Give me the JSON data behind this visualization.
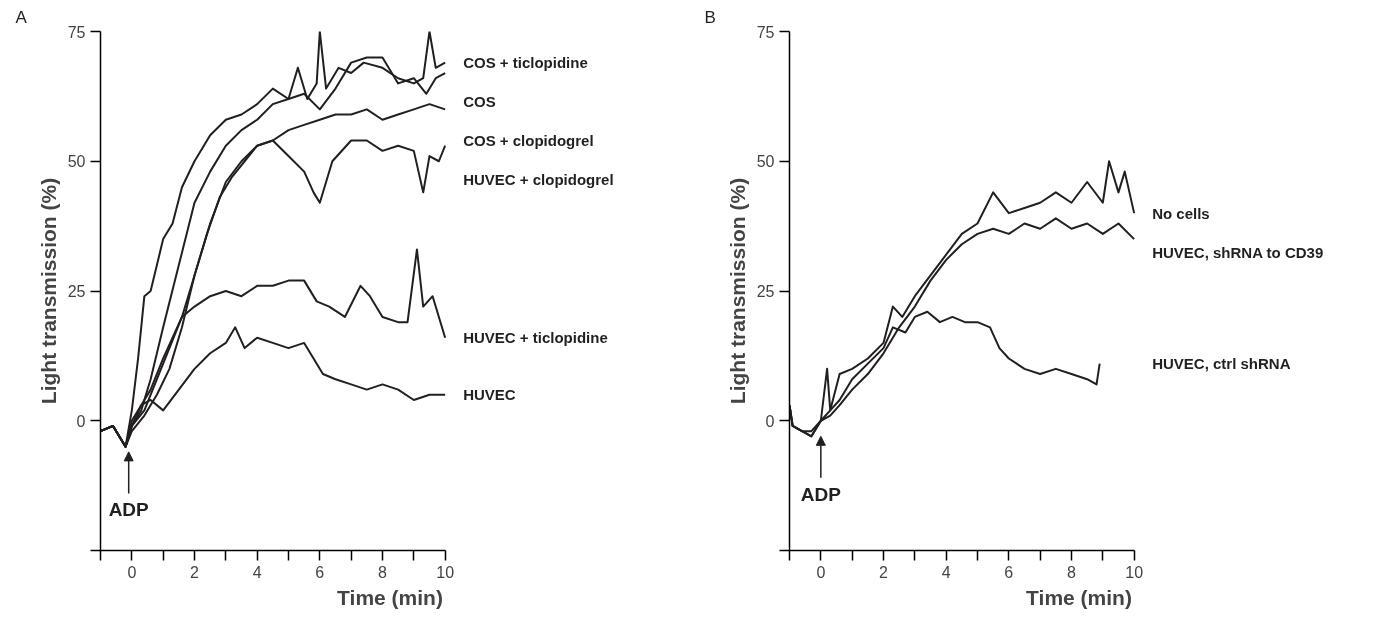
{
  "chart_data": [
    {
      "type": "line",
      "title": "A",
      "xlabel": "Time (min)",
      "ylabel": "Light transmission (%)",
      "xlim": [
        -1,
        10
      ],
      "ylim": [
        -25,
        75
      ],
      "xticks": [
        {
          "value": -1,
          "label": null
        },
        0,
        {
          "value": 1,
          "label": null
        },
        2,
        {
          "value": 3,
          "label": null
        },
        4,
        {
          "value": 5,
          "label": null
        },
        6,
        {
          "value": 7,
          "label": null
        },
        8,
        {
          "value": 9,
          "label": null
        },
        10
      ],
      "yticks": [
        {
          "value": -25,
          "label": null
        },
        0,
        25,
        50,
        75
      ],
      "grid": false,
      "legend": false,
      "marker": "none",
      "line_style": "solid",
      "annotations": [
        {
          "text": "ADP",
          "x": -0.1,
          "y": -5
        }
      ],
      "series": [
        {
          "name": "COS + ticlopidine",
          "color": "#231f20",
          "x": [
            -1,
            -0.6,
            -0.2,
            0,
            0.2,
            0.4,
            0.6,
            1,
            1.3,
            1.6,
            2,
            2.5,
            3,
            3.5,
            4,
            4.5,
            5,
            5.3,
            5.6,
            5.9,
            6,
            6.2,
            6.6,
            7,
            7.4,
            8,
            8.5,
            9,
            9.3,
            9.5,
            9.7,
            10
          ],
          "values": [
            -2,
            -1,
            -5,
            2,
            12,
            24,
            25,
            35,
            38,
            45,
            50,
            55,
            58,
            59,
            61,
            64,
            62,
            68,
            62,
            65,
            75,
            64,
            68,
            67,
            69,
            68,
            66,
            65,
            66,
            75,
            68,
            69
          ]
        },
        {
          "name": "COS",
          "color": "#231f20",
          "x": [
            -1,
            -0.6,
            -0.2,
            0,
            0.3,
            0.6,
            1,
            1.5,
            2,
            2.5,
            3,
            3.5,
            4,
            4.5,
            5,
            5.5,
            6,
            6.5,
            7,
            7.5,
            8,
            8.5,
            9,
            9.4,
            9.7,
            10
          ],
          "values": [
            -2,
            -1,
            -5,
            -1,
            2,
            8,
            18,
            30,
            42,
            48,
            53,
            56,
            58,
            61,
            62,
            63,
            60,
            64,
            69,
            70,
            70,
            65,
            66,
            63,
            66,
            67
          ]
        },
        {
          "name": "COS + clopidogrel",
          "color": "#231f20",
          "x": [
            -1,
            -0.6,
            -0.2,
            0,
            0.4,
            0.8,
            1.2,
            1.6,
            2,
            2.5,
            3,
            3.5,
            4,
            4.5,
            5,
            5.5,
            6,
            6.5,
            7,
            7.5,
            8,
            8.5,
            9,
            9.5,
            10
          ],
          "values": [
            -2,
            -1,
            -5,
            -2,
            1,
            5,
            10,
            18,
            28,
            38,
            46,
            50,
            53,
            54,
            56,
            57,
            58,
            59,
            59,
            60,
            58,
            59,
            60,
            61,
            60
          ]
        },
        {
          "name": "HUVEC + clopidogrel",
          "color": "#231f20",
          "x": [
            -1,
            -0.6,
            -0.2,
            0,
            0.4,
            0.8,
            1.2,
            1.6,
            2,
            2.4,
            2.8,
            3.2,
            3.6,
            4,
            4.5,
            5,
            5.5,
            5.8,
            6,
            6.4,
            7,
            7.5,
            8,
            8.5,
            9,
            9.3,
            9.5,
            9.8,
            10
          ],
          "values": [
            -2,
            -1,
            -5,
            -1,
            2,
            8,
            14,
            20,
            28,
            36,
            43,
            47,
            50,
            53,
            54,
            51,
            48,
            44,
            42,
            50,
            54,
            54,
            52,
            53,
            52,
            44,
            51,
            50,
            53
          ]
        },
        {
          "name": "HUVEC + ticlopidine",
          "color": "#231f20",
          "x": [
            -1,
            -0.6,
            -0.2,
            0,
            0.3,
            0.6,
            1,
            1.3,
            1.6,
            2,
            2.5,
            3,
            3.5,
            4,
            4.5,
            5,
            5.5,
            5.9,
            6.3,
            6.8,
            7.3,
            7.6,
            8,
            8.5,
            8.8,
            9.1,
            9.3,
            9.6,
            10
          ],
          "values": [
            -2,
            -1,
            -5,
            -1,
            3,
            6,
            12,
            16,
            20,
            22,
            24,
            25,
            24,
            26,
            26,
            27,
            27,
            23,
            22,
            20,
            26,
            24,
            20,
            19,
            19,
            33,
            22,
            24,
            16
          ]
        },
        {
          "name": "HUVEC",
          "color": "#231f20",
          "x": [
            -1,
            -0.6,
            -0.2,
            0,
            0.3,
            0.6,
            1,
            1.5,
            2,
            2.5,
            3,
            3.3,
            3.6,
            4,
            4.5,
            5,
            5.5,
            5.8,
            6.1,
            6.5,
            7,
            7.5,
            8,
            8.5,
            9,
            9.5,
            10
          ],
          "values": [
            -2,
            -1,
            -5,
            0,
            3,
            4,
            2,
            6,
            10,
            13,
            15,
            18,
            14,
            16,
            15,
            14,
            15,
            12,
            9,
            8,
            7,
            6,
            7,
            6,
            4,
            5,
            5
          ]
        }
      ]
    },
    {
      "type": "line",
      "title": "B",
      "xlabel": "Time (min)",
      "ylabel": "Light transmission (%)",
      "xlim": [
        -1,
        10
      ],
      "ylim": [
        -25,
        75
      ],
      "xticks": [
        {
          "value": -1,
          "label": null
        },
        0,
        {
          "value": 1,
          "label": null
        },
        2,
        {
          "value": 3,
          "label": null
        },
        4,
        {
          "value": 5,
          "label": null
        },
        6,
        {
          "value": 7,
          "label": null
        },
        8,
        {
          "value": 9,
          "label": null
        },
        10
      ],
      "yticks": [
        {
          "value": -25,
          "label": null
        },
        0,
        25,
        50,
        75
      ],
      "grid": false,
      "legend": false,
      "marker": "none",
      "line_style": "solid",
      "annotations": [
        {
          "text": "ADP",
          "x": 0,
          "y": -2
        }
      ],
      "series": [
        {
          "name": "No cells",
          "color": "#231f20",
          "x": [
            -1,
            -0.9,
            -0.6,
            -0.3,
            0,
            0.2,
            0.3,
            0.6,
            1,
            1.5,
            2,
            2.3,
            2.6,
            3,
            3.5,
            4,
            4.5,
            5,
            5.5,
            6,
            6.5,
            7,
            7.5,
            8,
            8.5,
            9,
            9.2,
            9.5,
            9.7,
            10
          ],
          "values": [
            3,
            -1,
            -2,
            -2,
            0,
            10,
            2,
            9,
            10,
            12,
            15,
            22,
            20,
            24,
            28,
            32,
            36,
            38,
            44,
            40,
            41,
            42,
            44,
            42,
            46,
            42,
            50,
            44,
            48,
            40
          ]
        },
        {
          "name": "HUVEC, shRNA to CD39",
          "color": "#231f20",
          "x": [
            -1,
            -0.9,
            -0.6,
            -0.3,
            0,
            0.3,
            0.6,
            1,
            1.5,
            2,
            2.5,
            3,
            3.5,
            4,
            4.5,
            5,
            5.5,
            6,
            6.5,
            7,
            7.5,
            8,
            8.5,
            9,
            9.5,
            10
          ],
          "values": [
            3,
            -1,
            -2,
            -3,
            0,
            1,
            3,
            6,
            9,
            13,
            18,
            22,
            27,
            31,
            34,
            36,
            37,
            36,
            38,
            37,
            39,
            37,
            38,
            36,
            38,
            35
          ]
        },
        {
          "name": "HUVEC, ctrl shRNA",
          "color": "#231f20",
          "x": [
            -1,
            -0.9,
            -0.6,
            -0.3,
            0,
            0.3,
            0.6,
            1,
            1.5,
            2,
            2.3,
            2.7,
            3,
            3.4,
            3.8,
            4.2,
            4.6,
            5,
            5.4,
            5.7,
            6,
            6.5,
            7,
            7.5,
            8,
            8.5,
            8.8,
            8.9
          ],
          "values": [
            3,
            -1,
            -2,
            -3,
            0,
            2,
            4,
            8,
            11,
            14,
            18,
            17,
            20,
            21,
            19,
            20,
            19,
            19,
            18,
            14,
            12,
            10,
            9,
            10,
            9,
            8,
            7,
            11
          ]
        }
      ]
    }
  ]
}
